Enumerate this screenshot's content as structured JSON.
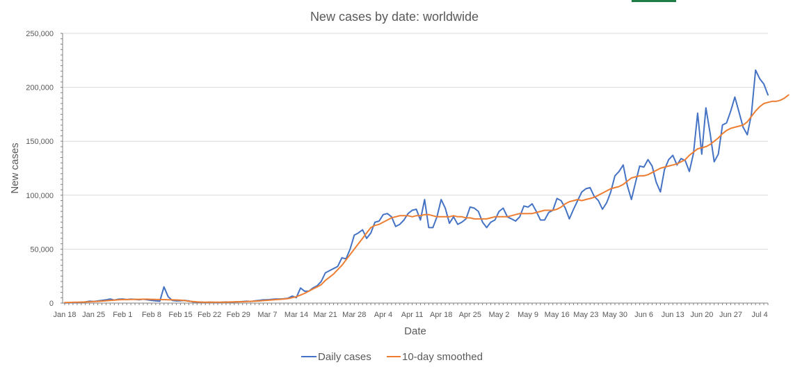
{
  "chart_data": {
    "type": "line",
    "title": "New cases by date: worldwide",
    "xlabel": "Date",
    "ylabel": "New cases",
    "ylim": [
      0,
      250000
    ],
    "yticks": [
      0,
      50000,
      100000,
      150000,
      200000,
      250000
    ],
    "ytick_labels": [
      "0",
      "50,000",
      "100,000",
      "150,000",
      "200,000",
      "250,000"
    ],
    "x_start": "Jan 18",
    "x_end": "Jul 4",
    "xtick_labels": [
      "Jan 18",
      "Jan 25",
      "Feb 1",
      "Feb 8",
      "Feb 15",
      "Feb 22",
      "Feb 29",
      "Mar 7",
      "Mar 14",
      "Mar 21",
      "Mar 28",
      "Apr 4",
      "Apr 11",
      "Apr 18",
      "Apr 25",
      "May 2",
      "May 9",
      "May 16",
      "May 23",
      "May 30",
      "Jun 6",
      "Jun 13",
      "Jun 20",
      "Jun 27",
      "Jul 4"
    ],
    "grid": true,
    "legend_position": "bottom",
    "series": [
      {
        "name": "Daily cases",
        "color": "#4472C4",
        "values": [
          100,
          300,
          400,
          500,
          700,
          1000,
          1800,
          1500,
          2000,
          2500,
          3000,
          3800,
          2800,
          3600,
          3800,
          3200,
          3700,
          3500,
          3000,
          3600,
          3000,
          2500,
          2100,
          1800,
          15000,
          6000,
          2500,
          2000,
          2200,
          2500,
          2000,
          1100,
          900,
          800,
          600,
          900,
          700,
          500,
          800,
          1000,
          900,
          1000,
          1200,
          1500,
          1800,
          1500,
          2100,
          2500,
          3000,
          3000,
          3500,
          3800,
          3800,
          4000,
          4500,
          6500,
          5000,
          14000,
          11000,
          11000,
          14000,
          16000,
          20000,
          28000,
          30000,
          32000,
          34000,
          42000,
          41000,
          50000,
          63000,
          65000,
          68000,
          60000,
          65000,
          75000,
          76000,
          82000,
          83000,
          80000,
          71000,
          73000,
          77000,
          83000,
          86000,
          87000,
          77000,
          96000,
          70000,
          70000,
          80000,
          96000,
          88000,
          74000,
          80000,
          73000,
          75000,
          78000,
          89000,
          88000,
          85000,
          75000,
          70000,
          75000,
          77000,
          85000,
          88000,
          80000,
          78000,
          76000,
          80000,
          90000,
          89000,
          92000,
          85000,
          77000,
          77000,
          84000,
          86000,
          97000,
          95000,
          88000,
          78000,
          87000,
          95000,
          103000,
          106000,
          107000,
          99000,
          95000,
          87000,
          93000,
          103000,
          118000,
          122000,
          128000,
          109000,
          96000,
          112000,
          127000,
          126000,
          133000,
          127000,
          112000,
          103000,
          124000,
          133000,
          137000,
          128000,
          134000,
          132000,
          122000,
          139000,
          176000,
          138000,
          181000,
          158000,
          131000,
          138000,
          165000,
          167000,
          178000,
          191000,
          177000,
          163000,
          156000,
          175000,
          216000,
          208000,
          203000,
          193000
        ]
      },
      {
        "name": "10-day smoothed",
        "color": "#ED7D31",
        "values": [
          500,
          600,
          700,
          800,
          900,
          1000,
          1200,
          1400,
          1600,
          1900,
          2200,
          2500,
          2800,
          3000,
          3200,
          3300,
          3400,
          3500,
          3500,
          3600,
          3600,
          3500,
          3400,
          3300,
          3200,
          3100,
          3000,
          2900,
          2700,
          2300,
          1800,
          1400,
          1100,
          900,
          800,
          800,
          800,
          800,
          800,
          900,
          1000,
          1100,
          1200,
          1300,
          1400,
          1600,
          1800,
          2000,
          2300,
          2600,
          2900,
          3200,
          3500,
          3800,
          4200,
          5000,
          5900,
          7500,
          9000,
          11000,
          13000,
          15000,
          17000,
          21000,
          24000,
          27000,
          31000,
          35000,
          40000,
          45000,
          50000,
          55000,
          60000,
          65000,
          70000,
          72000,
          73000,
          75000,
          77000,
          79000,
          80000,
          81000,
          81000,
          81000,
          80000,
          81000,
          81000,
          82000,
          82000,
          81000,
          80000,
          80000,
          80000,
          80000,
          81000,
          80000,
          80000,
          79000,
          79000,
          78000,
          78000,
          78000,
          78000,
          79000,
          80000,
          80000,
          80000,
          80000,
          81000,
          82000,
          83000,
          83000,
          83000,
          83000,
          84000,
          85000,
          86000,
          86000,
          86000,
          87000,
          89000,
          92000,
          94000,
          95000,
          96000,
          95000,
          96000,
          97000,
          98000,
          100000,
          102000,
          104000,
          106000,
          107000,
          108000,
          110000,
          113000,
          116000,
          117000,
          118000,
          118000,
          119000,
          121000,
          123000,
          125000,
          126000,
          127000,
          128000,
          129000,
          131000,
          133000,
          137000,
          140000,
          143000,
          144000,
          145000,
          147000,
          150000,
          153000,
          157000,
          160000,
          162000,
          163000,
          164000,
          165000,
          168000,
          173000,
          178000,
          182000,
          185000,
          186000,
          187000,
          187000,
          188000,
          190000,
          193000
        ]
      }
    ]
  }
}
